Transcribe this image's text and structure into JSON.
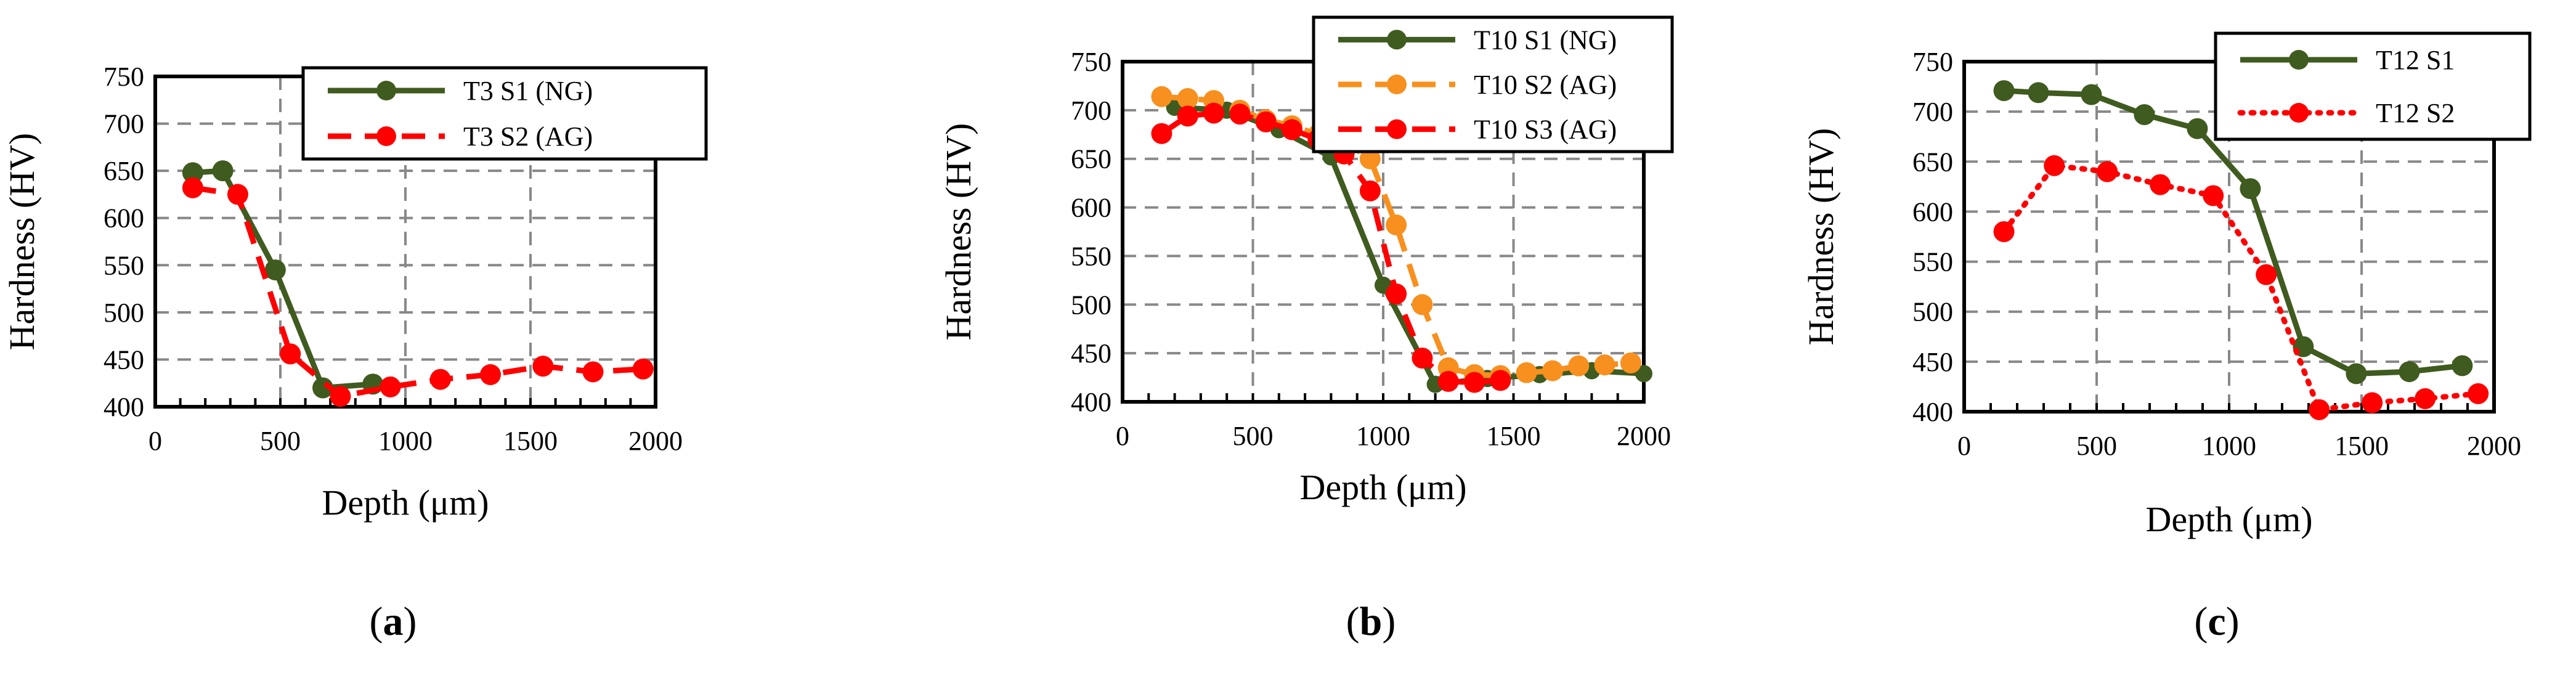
{
  "chart_data": [
    {
      "type": "line",
      "xlabel": "Depth (μm)",
      "ylabel": "Hardness (HV)",
      "xlim": [
        0,
        2000
      ],
      "ylim": [
        400,
        750
      ],
      "xticks": [
        0,
        500,
        1000,
        1500,
        2000
      ],
      "yticks": [
        400,
        450,
        500,
        550,
        600,
        650,
        700,
        750
      ],
      "xtick_labels": [
        "0",
        "500",
        "1000",
        "1500",
        "2000"
      ],
      "ytick_labels": [
        "400",
        "450",
        "500",
        "550",
        "600",
        "650",
        "700",
        "750"
      ],
      "grid": true,
      "legend_position": "top-right",
      "caption_prefix": "(",
      "caption_letter": "a",
      "caption_suffix": ")",
      "series": [
        {
          "name": "T3 S1 (NG)",
          "color": "#3f5b1f",
          "style": "solid",
          "x": [
            150,
            270,
            480,
            670,
            870
          ],
          "y": [
            648,
            650,
            545,
            420,
            424
          ]
        },
        {
          "name": "T3 S2 (AG)",
          "color": "#ff0000",
          "style": "dashed",
          "x": [
            150,
            330,
            540,
            740,
            940,
            1140,
            1340,
            1550,
            1750,
            1950
          ],
          "y": [
            632,
            625,
            456,
            411,
            421,
            429,
            434,
            443,
            437,
            440
          ]
        }
      ]
    },
    {
      "type": "line",
      "xlabel": "Depth (μm)",
      "ylabel": "Hardness (HV)",
      "xlim": [
        0,
        2000
      ],
      "ylim": [
        400,
        750
      ],
      "xticks": [
        0,
        500,
        1000,
        1500,
        2000
      ],
      "yticks": [
        400,
        450,
        500,
        550,
        600,
        650,
        700,
        750
      ],
      "xtick_labels": [
        "0",
        "500",
        "1000",
        "1500",
        "2000"
      ],
      "ytick_labels": [
        "400",
        "450",
        "500",
        "550",
        "600",
        "650",
        "700",
        "750"
      ],
      "grid": true,
      "legend_position": "top-right",
      "caption_prefix": "(",
      "caption_letter": "b",
      "caption_suffix": ")",
      "series": [
        {
          "name": "T10 S1 (NG)",
          "color": "#3f5b1f",
          "style": "solid",
          "x": [
            200,
            400,
            600,
            800,
            1000,
            1200,
            1400,
            1600,
            1800,
            2000
          ],
          "y": [
            703,
            700,
            680,
            652,
            520,
            418,
            424,
            428,
            432,
            429
          ],
          "marker_size": "small"
        },
        {
          "name": "T10 S2 (AG)",
          "color": "#f7901e",
          "style": "dashed",
          "x": [
            150,
            250,
            350,
            450,
            550,
            650,
            750,
            850,
            950,
            1050,
            1150,
            1250,
            1350,
            1450,
            1550,
            1650,
            1750,
            1850,
            1950
          ],
          "y": [
            714,
            712,
            710,
            700,
            690,
            684,
            675,
            668,
            650,
            582,
            500,
            435,
            428,
            427,
            430,
            432,
            437,
            438,
            440
          ]
        },
        {
          "name": "T10 S3 (AG)",
          "color": "#ff0000",
          "style": "dashed",
          "x": [
            150,
            250,
            350,
            450,
            550,
            650,
            750,
            850,
            950,
            1050,
            1150,
            1250,
            1350,
            1450
          ],
          "y": [
            676,
            694,
            697,
            696,
            688,
            680,
            670,
            655,
            617,
            511,
            445,
            421,
            420,
            422
          ]
        }
      ]
    },
    {
      "type": "line",
      "xlabel": "Depth (μm)",
      "ylabel": "Hardness (HV)",
      "xlim": [
        0,
        2000
      ],
      "ylim": [
        400,
        750
      ],
      "xticks": [
        0,
        500,
        1000,
        1500,
        2000
      ],
      "yticks": [
        400,
        450,
        500,
        550,
        600,
        650,
        700,
        750
      ],
      "xtick_labels": [
        "0",
        "500",
        "1000",
        "1500",
        "2000"
      ],
      "ytick_labels": [
        "400",
        "450",
        "500",
        "550",
        "600",
        "650",
        "700",
        "750"
      ],
      "grid": true,
      "legend_position": "top-right",
      "caption_prefix": "(",
      "caption_letter": "c",
      "caption_suffix": ")",
      "series": [
        {
          "name": "T12 S1",
          "color": "#3f5b1f",
          "style": "solid",
          "x": [
            150,
            280,
            480,
            680,
            880,
            1080,
            1280,
            1480,
            1680,
            1880
          ],
          "y": [
            721,
            719,
            717,
            697,
            683,
            623,
            465,
            438,
            440,
            446
          ]
        },
        {
          "name": "T12 S2",
          "color": "#ff0000",
          "style": "dotted",
          "x": [
            150,
            340,
            540,
            740,
            940,
            1140,
            1340,
            1540,
            1740,
            1940
          ],
          "y": [
            580,
            646,
            640,
            627,
            616,
            537,
            402,
            409,
            413,
            418
          ]
        }
      ]
    }
  ]
}
